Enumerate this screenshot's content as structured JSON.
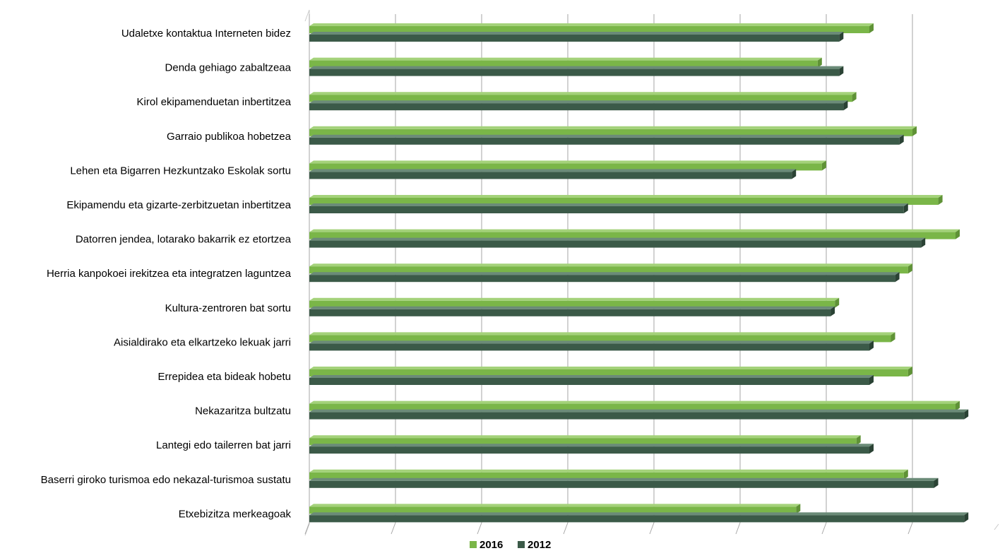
{
  "chart_data": {
    "type": "bar",
    "orientation": "horizontal",
    "style": "3d",
    "title": "",
    "xlabel": "",
    "ylabel": "",
    "categories": [
      "Udaletxe kontaktua Interneten bidez",
      "Denda gehiago zabaltzeaa",
      "Kirol ekipamenduetan inbertitzea",
      "Garraio publikoa hobetzea",
      "Lehen eta Bigarren Hezkuntzako Eskolak sortu",
      "Ekipamendu eta gizarte-zerbitzuetan inbertitzea",
      "Datorren jendea, lotarako bakarrik ez etortzea",
      "Herria kanpokoei irekitzea eta integratzen laguntzea",
      "Kultura-zentroren bat sortu",
      "Aisialdirako eta elkartzeko lekuak jarri",
      "Errepidea eta bideak hobetu",
      "Nekazaritza bultzatu",
      "Lantegi edo tailerren bat jarri",
      "Baserri giroko turismoa edo nekazal-turismoa sustatu",
      "Etxebizitza merkeagoak"
    ],
    "series": [
      {
        "name": "2016",
        "color": "#7ab648",
        "values": [
          6.5,
          5.9,
          6.3,
          7.0,
          5.95,
          7.3,
          7.5,
          6.95,
          6.1,
          6.75,
          6.95,
          7.5,
          6.35,
          6.9,
          5.65
        ]
      },
      {
        "name": "2012",
        "color": "#3b5a48",
        "values": [
          6.15,
          6.15,
          6.2,
          6.85,
          5.6,
          6.9,
          7.1,
          6.8,
          6.05,
          6.5,
          6.5,
          7.6,
          6.5,
          7.25,
          7.6
        ]
      }
    ],
    "xlim": [
      0,
      8
    ],
    "gridlines": "vertical",
    "tick_labels_shown": false,
    "legend": {
      "position": "bottom",
      "entries": [
        "2016",
        "2012"
      ]
    }
  }
}
